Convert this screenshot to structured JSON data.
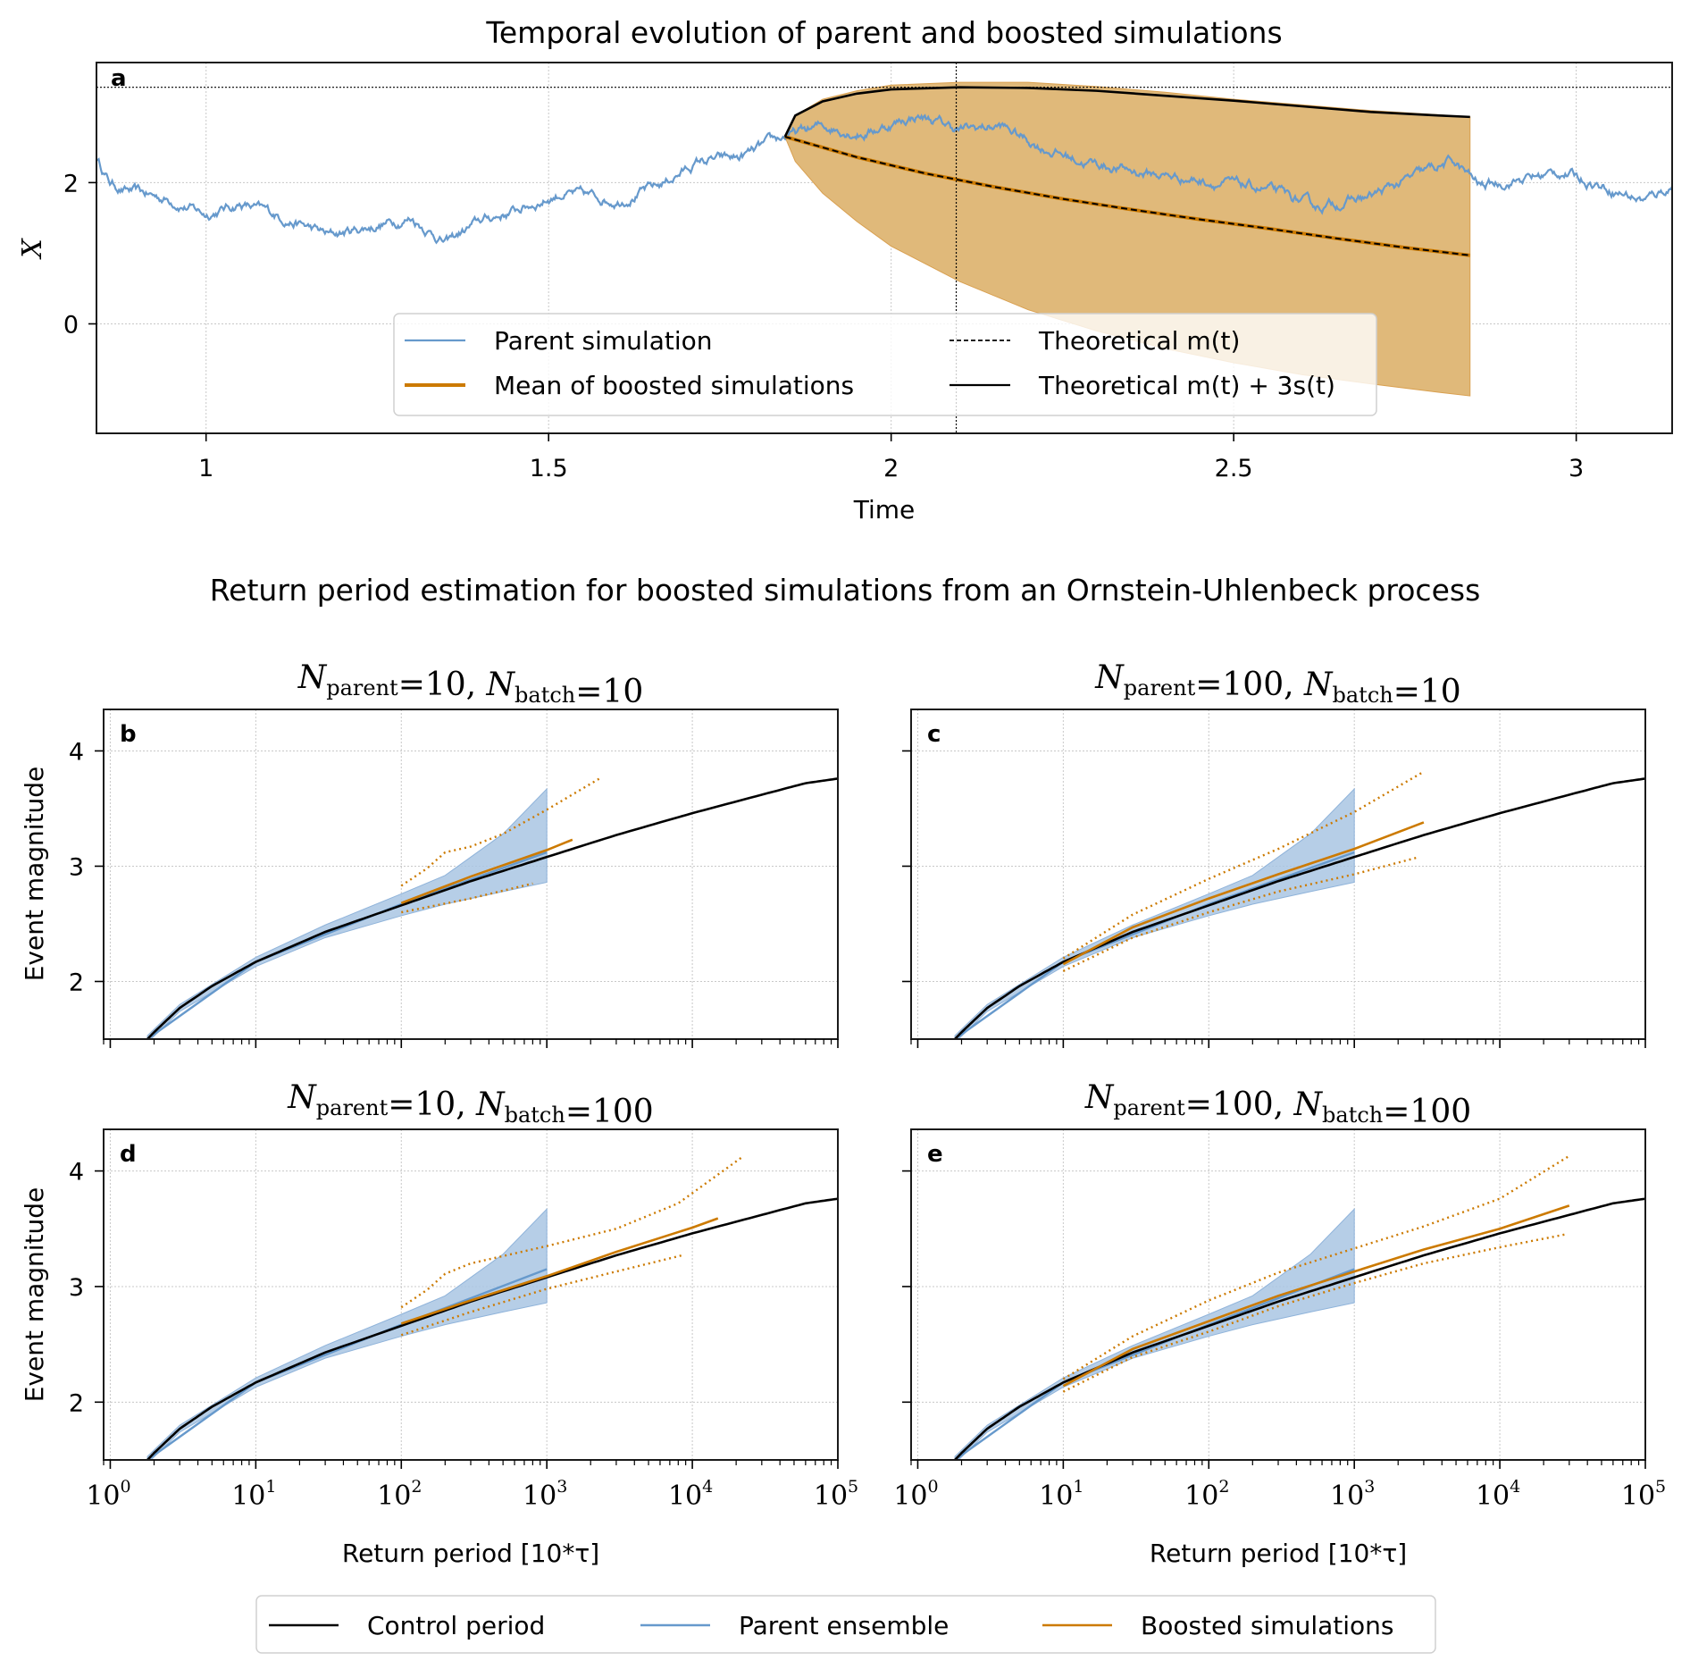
{
  "colors": {
    "parent": "#6699cc",
    "boosted": "#cc7a00",
    "boosted_fill": "#e0b97a",
    "parent_fill": "#a9c5e3",
    "control": "#000000"
  },
  "chart_data": [
    {
      "id": "a",
      "type": "line",
      "panel_letter": "a",
      "title": "Temporal evolution of parent and boosted simulations",
      "xlabel": "Time",
      "ylabel": "X",
      "xlim": [
        0.84,
        3.14
      ],
      "ylim": [
        -1.55,
        3.7
      ],
      "xticks": [
        1,
        1.5,
        2,
        2.5,
        3
      ],
      "xtick_labels": [
        "1",
        "1.5",
        "2",
        "2.5",
        "3"
      ],
      "yticks": [
        0,
        2
      ],
      "ytick_labels": [
        "0",
        "2"
      ],
      "grid": true,
      "threshold_y": 3.35,
      "event_time": 2.095,
      "boost_start": 1.845,
      "boost_end": 2.845,
      "series": [
        {
          "name": "Parent simulation",
          "style": "line",
          "waypoints": {
            "x": [
              0.84,
              0.86,
              0.88,
              0.95,
              1.0,
              1.05,
              1.1,
              1.18,
              1.3,
              1.35,
              1.4,
              1.45,
              1.52,
              1.6,
              1.66,
              1.72,
              1.78,
              1.845,
              1.9,
              1.96,
              2.04,
              2.1,
              2.16,
              2.22,
              2.28,
              2.36,
              2.44,
              2.55,
              2.62,
              2.7,
              2.78,
              2.82,
              2.86,
              2.92,
              2.98,
              3.04,
              3.1,
              3.14
            ],
            "y": [
              2.35,
              2.0,
              1.9,
              1.75,
              1.55,
              1.7,
              1.55,
              1.25,
              1.5,
              1.15,
              1.45,
              1.6,
              1.85,
              1.75,
              1.95,
              2.3,
              2.35,
              2.65,
              2.8,
              2.7,
              2.95,
              2.75,
              2.8,
              2.5,
              2.3,
              2.15,
              2.05,
              1.9,
              1.65,
              1.8,
              2.15,
              2.3,
              1.95,
              2.05,
              2.15,
              1.95,
              1.75,
              1.95
            ]
          }
        },
        {
          "name": "Mean of boosted simulations",
          "style": "line",
          "x": [
            1.845,
            1.95,
            2.05,
            2.15,
            2.25,
            2.35,
            2.45,
            2.55,
            2.65,
            2.75,
            2.845
          ],
          "y": [
            2.65,
            2.36,
            2.13,
            1.94,
            1.77,
            1.62,
            1.48,
            1.35,
            1.21,
            1.08,
            0.97
          ]
        },
        {
          "name": "Theoretical m(t)",
          "style": "dashed",
          "x": [
            1.845,
            1.95,
            2.05,
            2.15,
            2.25,
            2.35,
            2.45,
            2.55,
            2.65,
            2.75,
            2.845
          ],
          "y": [
            2.65,
            2.36,
            2.13,
            1.94,
            1.77,
            1.62,
            1.48,
            1.35,
            1.21,
            1.08,
            0.97
          ]
        },
        {
          "name": "Theoretical m(t) + 3s(t)",
          "style": "solid",
          "x": [
            1.845,
            1.86,
            1.9,
            1.95,
            2.0,
            2.1,
            2.2,
            2.3,
            2.4,
            2.5,
            2.6,
            2.7,
            2.8,
            2.845
          ],
          "y": [
            2.65,
            2.95,
            3.15,
            3.26,
            3.32,
            3.35,
            3.34,
            3.3,
            3.23,
            3.16,
            3.08,
            3.0,
            2.95,
            2.93
          ]
        },
        {
          "name": "Boosted envelope",
          "style": "fill",
          "x": [
            1.845,
            1.86,
            1.9,
            1.95,
            2.0,
            2.1,
            2.2,
            2.3,
            2.4,
            2.5,
            2.6,
            2.7,
            2.8,
            2.845
          ],
          "upper": [
            2.65,
            2.95,
            3.18,
            3.3,
            3.38,
            3.42,
            3.42,
            3.36,
            3.28,
            3.18,
            3.1,
            3.02,
            2.96,
            2.93
          ],
          "lower": [
            2.65,
            2.3,
            1.85,
            1.45,
            1.1,
            0.6,
            0.2,
            -0.1,
            -0.35,
            -0.55,
            -0.72,
            -0.85,
            -0.97,
            -1.02
          ]
        }
      ],
      "legend": {
        "placement": "lower-center",
        "entries": [
          {
            "label": "Parent simulation",
            "style": "parent"
          },
          {
            "label": "Mean of boosted simulations",
            "style": "boosted"
          },
          {
            "label": "Theoretical m(t)",
            "style": "dashed"
          },
          {
            "label": "Theoretical m(t) + 3s(t)",
            "style": "solid"
          }
        ]
      }
    },
    {
      "id": "b",
      "type": "line",
      "panel_letter": "b",
      "title_parts": {
        "n1": "N",
        "s1": "parent",
        "v1": "=10, ",
        "n2": "N",
        "s2": "batch",
        "v2": "=10"
      },
      "xscale": "log",
      "xlim": [
        0.9,
        100000
      ],
      "ylim": [
        1.5,
        4.36
      ],
      "ylabel": "Event magnitude",
      "xlabel": "",
      "series": {
        "control": {
          "x": [
            1.8,
            2,
            3,
            5,
            10,
            30,
            100,
            300,
            1000,
            3000,
            10000,
            30000,
            60000,
            100000
          ],
          "y": [
            1.5,
            1.56,
            1.77,
            1.96,
            2.17,
            2.43,
            2.66,
            2.87,
            3.08,
            3.27,
            3.46,
            3.62,
            3.72,
            3.76
          ]
        },
        "parent_band": {
          "x": [
            1.8,
            3,
            10,
            30,
            100,
            200,
            500,
            1000
          ],
          "lower": [
            1.47,
            1.74,
            2.13,
            2.38,
            2.57,
            2.67,
            2.78,
            2.86
          ],
          "upper": [
            1.53,
            1.8,
            2.21,
            2.49,
            2.76,
            2.92,
            3.28,
            3.67
          ]
        },
        "parent_mean": {
          "x": [
            1.8,
            10,
            100,
            1000
          ],
          "y": [
            1.5,
            2.17,
            2.67,
            3.12
          ]
        },
        "boosted": {
          "x": [
            100,
            300,
            1000,
            1500
          ],
          "y": [
            2.68,
            2.91,
            3.14,
            3.23
          ]
        },
        "boosted_upper": {
          "x": [
            100,
            150,
            200,
            300,
            500,
            1000,
            2300
          ],
          "y": [
            2.83,
            2.98,
            3.12,
            3.17,
            3.28,
            3.49,
            3.76
          ]
        },
        "boosted_lower": {
          "x": [
            100,
            300,
            800
          ],
          "y": [
            2.6,
            2.72,
            2.85
          ]
        }
      }
    },
    {
      "id": "c",
      "type": "line",
      "panel_letter": "c",
      "title_parts": {
        "n1": "N",
        "s1": "parent",
        "v1": "=100, ",
        "n2": "N",
        "s2": "batch",
        "v2": "=10"
      },
      "xscale": "log",
      "xlim": [
        0.9,
        100000
      ],
      "ylim": [
        1.5,
        4.36
      ],
      "ylabel": "",
      "xlabel": "",
      "series": {
        "control": {
          "x": [
            1.8,
            2,
            3,
            5,
            10,
            30,
            100,
            300,
            1000,
            3000,
            10000,
            30000,
            60000,
            100000
          ],
          "y": [
            1.5,
            1.56,
            1.77,
            1.96,
            2.17,
            2.43,
            2.66,
            2.87,
            3.08,
            3.27,
            3.46,
            3.62,
            3.72,
            3.76
          ]
        },
        "parent_band": {
          "x": [
            1.8,
            3,
            10,
            30,
            100,
            200,
            500,
            1000
          ],
          "lower": [
            1.47,
            1.74,
            2.13,
            2.38,
            2.57,
            2.67,
            2.78,
            2.86
          ],
          "upper": [
            1.53,
            1.8,
            2.21,
            2.49,
            2.76,
            2.92,
            3.28,
            3.67
          ]
        },
        "parent_mean": {
          "x": [
            1.8,
            10,
            100,
            1000
          ],
          "y": [
            1.5,
            2.17,
            2.67,
            3.12
          ]
        },
        "boosted": {
          "x": [
            10,
            30,
            100,
            300,
            1000,
            3000
          ],
          "y": [
            2.15,
            2.47,
            2.72,
            2.93,
            3.15,
            3.38
          ]
        },
        "boosted_upper": {
          "x": [
            10,
            30,
            100,
            300,
            1000,
            3000
          ],
          "y": [
            2.2,
            2.58,
            2.89,
            3.15,
            3.47,
            3.82
          ]
        },
        "boosted_lower": {
          "x": [
            10,
            30,
            100,
            300,
            1000,
            2800
          ],
          "y": [
            2.09,
            2.38,
            2.6,
            2.78,
            2.93,
            3.08
          ]
        }
      }
    },
    {
      "id": "d",
      "type": "line",
      "panel_letter": "d",
      "title_parts": {
        "n1": "N",
        "s1": "parent",
        "v1": "=10, ",
        "n2": "N",
        "s2": "batch",
        "v2": "=100"
      },
      "xscale": "log",
      "xlim": [
        0.9,
        100000
      ],
      "ylim": [
        1.5,
        4.36
      ],
      "ylabel": "Event magnitude",
      "xlabel": "Return period [10*τ]",
      "xticks": [
        1,
        10,
        100,
        1000,
        10000,
        100000
      ],
      "xtick_exponents": [
        "0",
        "1",
        "2",
        "3",
        "4",
        "5"
      ],
      "series": {
        "control": {
          "x": [
            1.8,
            2,
            3,
            5,
            10,
            30,
            100,
            300,
            1000,
            3000,
            10000,
            30000,
            60000,
            100000
          ],
          "y": [
            1.5,
            1.56,
            1.77,
            1.96,
            2.17,
            2.43,
            2.66,
            2.87,
            3.08,
            3.27,
            3.46,
            3.62,
            3.72,
            3.76
          ]
        },
        "parent_band": {
          "x": [
            1.8,
            3,
            10,
            30,
            100,
            200,
            500,
            1000
          ],
          "lower": [
            1.47,
            1.74,
            2.13,
            2.38,
            2.57,
            2.67,
            2.78,
            2.86
          ],
          "upper": [
            1.53,
            1.8,
            2.21,
            2.49,
            2.76,
            2.92,
            3.28,
            3.67
          ]
        },
        "parent_mean": {
          "x": [
            1.8,
            10,
            100,
            1000
          ],
          "y": [
            1.5,
            2.17,
            2.67,
            3.15
          ]
        },
        "boosted": {
          "x": [
            100,
            300,
            1000,
            3000,
            10000,
            15000
          ],
          "y": [
            2.68,
            2.88,
            3.09,
            3.3,
            3.51,
            3.59
          ]
        },
        "boosted_upper": {
          "x": [
            100,
            150,
            200,
            300,
            1000,
            3000,
            8000,
            22000
          ],
          "y": [
            2.82,
            2.97,
            3.11,
            3.2,
            3.35,
            3.5,
            3.72,
            4.12
          ]
        },
        "boosted_lower": {
          "x": [
            100,
            300,
            1000,
            3000,
            8500
          ],
          "y": [
            2.58,
            2.78,
            2.98,
            3.13,
            3.27
          ]
        }
      }
    },
    {
      "id": "e",
      "type": "line",
      "panel_letter": "e",
      "title_parts": {
        "n1": "N",
        "s1": "parent",
        "v1": "=100, ",
        "n2": "N",
        "s2": "batch",
        "v2": "=100"
      },
      "xscale": "log",
      "xlim": [
        0.9,
        100000
      ],
      "ylim": [
        1.5,
        4.36
      ],
      "ylabel": "",
      "xlabel": "Return period [10*τ]",
      "xticks": [
        1,
        10,
        100,
        1000,
        10000,
        100000
      ],
      "xtick_exponents": [
        "0",
        "1",
        "2",
        "3",
        "4",
        "5"
      ],
      "series": {
        "control": {
          "x": [
            1.8,
            2,
            3,
            5,
            10,
            30,
            100,
            300,
            1000,
            3000,
            10000,
            30000,
            60000,
            100000
          ],
          "y": [
            1.5,
            1.56,
            1.77,
            1.96,
            2.17,
            2.43,
            2.66,
            2.87,
            3.08,
            3.27,
            3.46,
            3.62,
            3.72,
            3.76
          ]
        },
        "parent_band": {
          "x": [
            1.8,
            3,
            10,
            30,
            100,
            200,
            500,
            1000
          ],
          "lower": [
            1.47,
            1.74,
            2.13,
            2.38,
            2.57,
            2.67,
            2.78,
            2.86
          ],
          "upper": [
            1.53,
            1.8,
            2.21,
            2.49,
            2.76,
            2.92,
            3.28,
            3.67
          ]
        },
        "parent_mean": {
          "x": [
            1.8,
            10,
            100,
            1000
          ],
          "y": [
            1.5,
            2.17,
            2.67,
            3.15
          ]
        },
        "boosted": {
          "x": [
            10,
            30,
            100,
            300,
            1000,
            3000,
            10000,
            30000
          ],
          "y": [
            2.14,
            2.46,
            2.7,
            2.92,
            3.13,
            3.32,
            3.5,
            3.7
          ]
        },
        "boosted_upper": {
          "x": [
            10,
            30,
            100,
            300,
            1000,
            3000,
            10000,
            30000
          ],
          "y": [
            2.2,
            2.57,
            2.88,
            3.12,
            3.33,
            3.52,
            3.76,
            4.13
          ]
        },
        "boosted_lower": {
          "x": [
            10,
            30,
            100,
            300,
            1000,
            3000,
            10000,
            28000
          ],
          "y": [
            2.09,
            2.39,
            2.61,
            2.83,
            3.03,
            3.2,
            3.34,
            3.45
          ]
        }
      }
    }
  ],
  "section_title": "Return period estimation for boosted simulations from an Ornstein-Uhlenbeck process",
  "bottom_yticks": [
    2,
    3,
    4
  ],
  "bottom_ytick_labels": [
    "2",
    "3",
    "4"
  ],
  "xlabel_bottom": "Return period [10*τ]",
  "ylabel_bottom": "Event magnitude",
  "bottom_legend": {
    "placement": "bottom-center",
    "entries": [
      {
        "label": "Control period",
        "style": "control"
      },
      {
        "label": "Parent ensemble",
        "style": "parent"
      },
      {
        "label": "Boosted simulations",
        "style": "boosted"
      }
    ]
  }
}
